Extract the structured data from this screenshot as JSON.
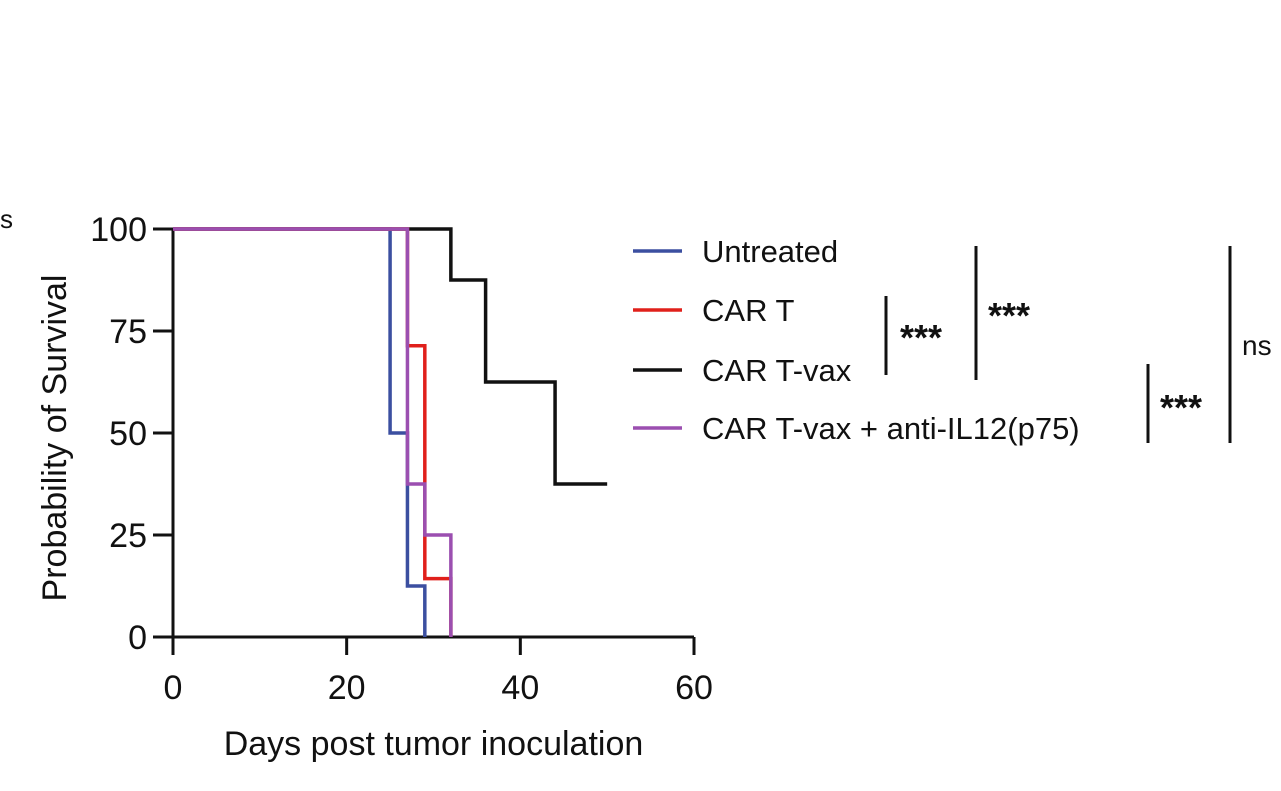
{
  "chart_data": {
    "type": "line",
    "subtype": "kaplan-meier step",
    "xlabel": "Days post tumor inoculation",
    "ylabel": "Probability of Survival",
    "xlim": [
      0,
      60
    ],
    "ylim": [
      0,
      100
    ],
    "xticks": [
      0,
      20,
      40,
      60
    ],
    "yticks": [
      0,
      25,
      50,
      75,
      100
    ],
    "grid": false,
    "legend_placement": "right",
    "series": [
      {
        "name": "Untreated",
        "color": "#3b4fa0",
        "steps": [
          [
            0,
            100
          ],
          [
            25,
            50
          ],
          [
            27,
            12.5
          ],
          [
            29,
            0
          ]
        ]
      },
      {
        "name": "CAR T",
        "color": "#e0201b",
        "steps": [
          [
            0,
            100
          ],
          [
            27,
            71.4
          ],
          [
            29,
            14.3
          ],
          [
            32,
            0
          ]
        ]
      },
      {
        "name": "CAR T-vax",
        "color": "#111111",
        "steps": [
          [
            0,
            100
          ],
          [
            32,
            87.5
          ],
          [
            36,
            62.5
          ],
          [
            44,
            37.5
          ],
          [
            50,
            37.5
          ]
        ]
      },
      {
        "name": "CAR T-vax + anti-IL12(p75)",
        "color": "#9b4fb0",
        "steps": [
          [
            0,
            100
          ],
          [
            27,
            37.5
          ],
          [
            29,
            25
          ],
          [
            32,
            0
          ]
        ]
      }
    ],
    "comparisons": [
      {
        "label": "***",
        "between": [
          "CAR T",
          "CAR T-vax"
        ]
      },
      {
        "label": "***",
        "between": [
          "Untreated",
          "CAR T-vax"
        ]
      },
      {
        "label": "***",
        "between": [
          "CAR T-vax",
          "CAR T-vax + anti-IL12(p75)"
        ]
      },
      {
        "label": "ns",
        "between": [
          "Untreated",
          "CAR T-vax + anti-IL12(p75)"
        ]
      }
    ],
    "cropped_edge_text": "s"
  }
}
